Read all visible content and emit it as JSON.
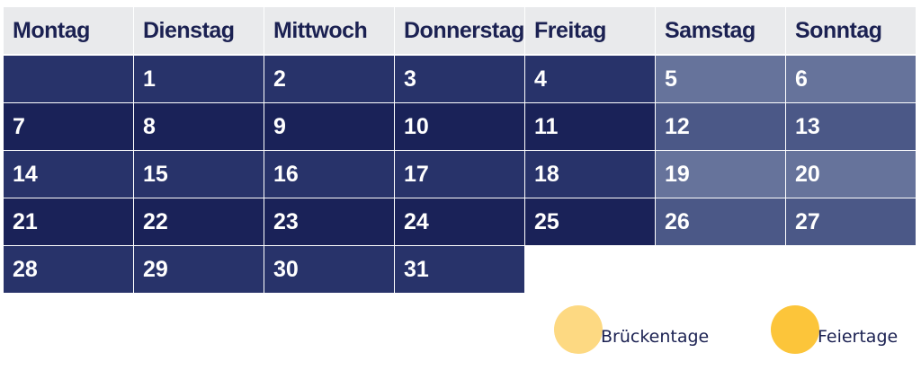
{
  "weekdays": [
    "Montag",
    "Dienstag",
    "Mittwoch",
    "Donnerstag",
    "Freitag",
    "Samstag",
    "Sonntag"
  ],
  "weeks": [
    [
      "",
      "1",
      "2",
      "3",
      "4",
      "5",
      "6"
    ],
    [
      "7",
      "8",
      "9",
      "10",
      "11",
      "12",
      "13"
    ],
    [
      "14",
      "15",
      "16",
      "17",
      "18",
      "19",
      "20"
    ],
    [
      "21",
      "22",
      "23",
      "24",
      "25",
      "26",
      "27"
    ],
    [
      "28",
      "29",
      "30",
      "31",
      "",
      "",
      ""
    ]
  ],
  "legend": [
    {
      "label": "Brückentage",
      "color": "#fdd982"
    },
    {
      "label": "Feiertage",
      "color": "#fcc53a"
    }
  ],
  "colors": {
    "header_bg": "#e9eaec",
    "header_text": "#1b2152",
    "weekday_light": "#28336a",
    "weekday_dark": "#1a2258",
    "weekend_light": "#66739b",
    "weekend_dark": "#4b5887"
  }
}
